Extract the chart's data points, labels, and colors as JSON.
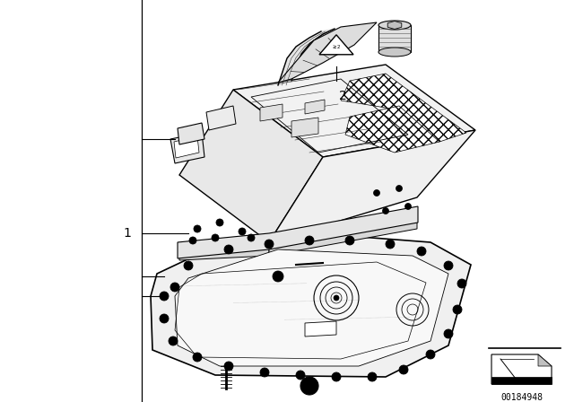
{
  "background_color": "#ffffff",
  "image_number": "00184948",
  "font_size_labels": 10,
  "vline_x": 0.247,
  "figsize": [
    6.4,
    4.48
  ],
  "dpi": 100
}
